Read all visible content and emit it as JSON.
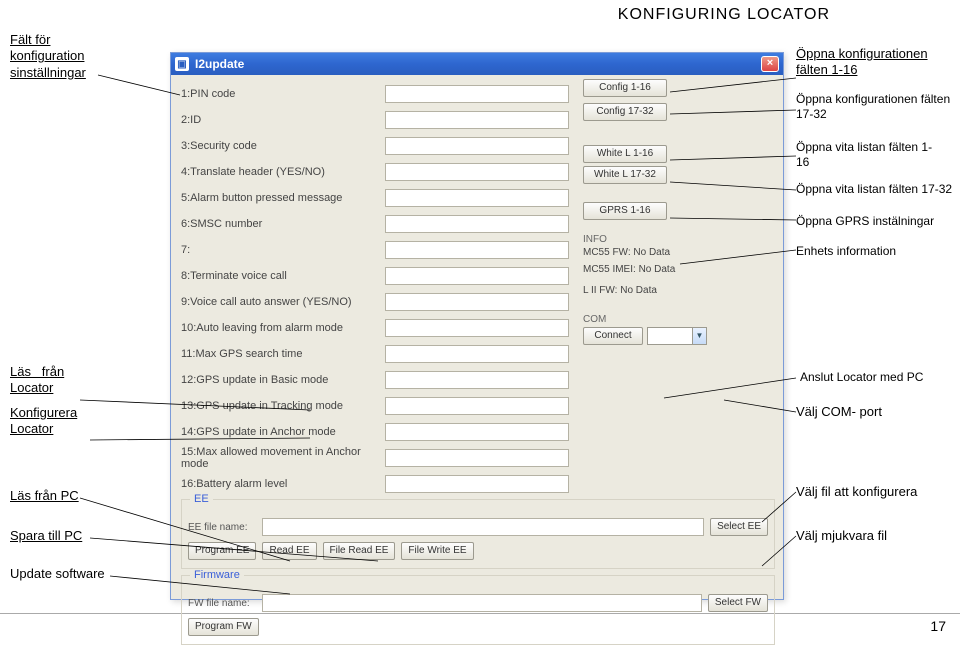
{
  "header": {
    "title": "KONFIGURING  LOCATOR"
  },
  "footer": {
    "page_number": "17"
  },
  "window": {
    "title": "I2update",
    "fields": [
      {
        "label": "1:PIN code"
      },
      {
        "label": "2:ID"
      },
      {
        "label": "3:Security code"
      },
      {
        "label": "4:Translate header (YES/NO)"
      },
      {
        "label": "5:Alarm button pressed message"
      },
      {
        "label": "6:SMSC number"
      },
      {
        "label": "7:"
      },
      {
        "label": "8:Terminate voice call"
      },
      {
        "label": "9:Voice call auto answer (YES/NO)"
      },
      {
        "label": "10:Auto leaving from alarm mode"
      },
      {
        "label": "11:Max GPS search time"
      },
      {
        "label": "12:GPS update in Basic mode"
      },
      {
        "label": "13:GPS update in Tracking mode"
      },
      {
        "label": "14:GPS update in Anchor mode"
      },
      {
        "label": "15:Max allowed movement in Anchor mode"
      },
      {
        "label": "16:Battery alarm level"
      }
    ],
    "right": {
      "config_1_16": "Config 1-16",
      "config_17_32": "Config 17-32",
      "white_1_16": "White L 1-16",
      "white_17_32": "White L 17-32",
      "gprs_1_16": "GPRS 1-16",
      "info_label": "INFO",
      "mc55_fw": "MC55 FW: No Data",
      "mc55_imei": "MC55 IMEI: No Data",
      "lii_fw": "L II FW: No Data",
      "com_label": "COM",
      "connect": "Connect"
    },
    "ee": {
      "legend": "EE",
      "file_label": "EE file name:",
      "select": "Select EE",
      "btn1": "Program EE",
      "btn2": "Read EE",
      "btn3": "File Read EE",
      "btn4": "File Write EE"
    },
    "fw": {
      "legend": "Firmware",
      "file_label": "FW file name:",
      "select": "Select FW",
      "btn1": "Program FW"
    }
  },
  "annotations": {
    "left": {
      "fields": "Fält för\nkonfiguration\nsinställningar",
      "read_locator": "Läs   från\nLocator",
      "config_locator": "Konfigurera\nLocator",
      "read_pc": "Läs från PC",
      "save_pc": "Spara till PC",
      "update_sw": "Update software"
    },
    "right": {
      "open_1_16": "Öppna konfigurationen\nfälten 1-16",
      "open_17_32": "Öppna konfigurationen fälten\n17-32",
      "white_1_16": "Öppna vita listan fälten 1-\n16",
      "white_17_32": "Öppna vita listan fälten 17-32",
      "gprs": "Öppna GPRS instälningar",
      "info": "Enhets information",
      "connect": "Anslut Locator  med PC",
      "com": "Välj COM- port",
      "select_ee": "Välj fil att konfigurera",
      "select_fw": "Välj mjukvara fil"
    }
  }
}
